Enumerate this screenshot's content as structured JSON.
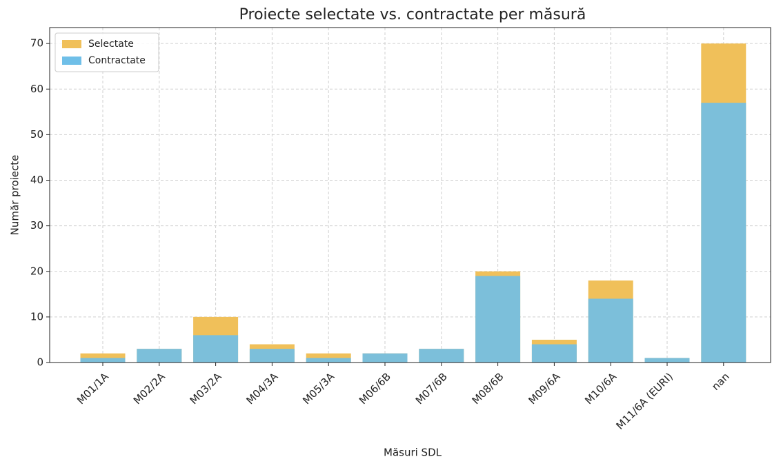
{
  "chart_data": {
    "type": "bar",
    "barmode": "overlay",
    "title": "Proiecte selectate vs. contractate per măsură",
    "x_label": "Măsuri SDL",
    "y_label": "Număr proiecte",
    "categories": [
      "M01/1A",
      "M02/2A",
      "M03/2A",
      "M04/3A",
      "M05/3A",
      "M06/6B",
      "M07/6B",
      "M08/6B",
      "M09/6A",
      "M10/6A",
      "M11/6A (EURI)",
      "nan"
    ],
    "series": [
      {
        "name": "Selectate",
        "color": "#f0c05a",
        "values": [
          2,
          3,
          10,
          4,
          2,
          2,
          3,
          20,
          5,
          18,
          1,
          70
        ]
      },
      {
        "name": "Contractate",
        "color": "#6fbfe8",
        "values": [
          1,
          3,
          6,
          3,
          1,
          2,
          3,
          19,
          4,
          14,
          1,
          57
        ]
      }
    ],
    "ylim": [
      0,
      73.5
    ],
    "yticks": [
      0,
      10,
      20,
      30,
      40,
      50,
      60,
      70
    ],
    "grid": true,
    "legend": "upper left"
  }
}
